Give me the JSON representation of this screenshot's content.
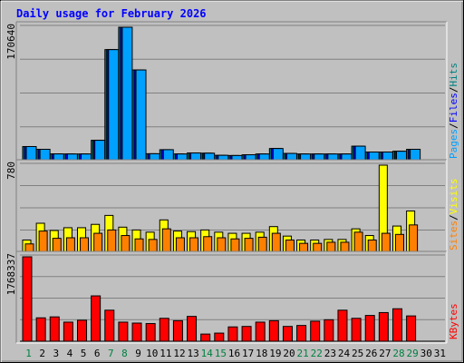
{
  "title": "Daily usage for February 2026",
  "chart_data": [
    {
      "type": "bar",
      "panel": "hits",
      "ymax_label": "170640",
      "ylim": [
        0,
        170640
      ],
      "legend": [
        {
          "text": "Pages",
          "color": "#00a0ff"
        },
        {
          "text": "/",
          "color": "#000000"
        },
        {
          "text": "Files",
          "color": "#0000ff"
        },
        {
          "text": "/",
          "color": "#000000"
        },
        {
          "text": "Hits",
          "color": "#008080"
        }
      ],
      "series": [
        {
          "name": "Hits",
          "color": "#008080",
          "values": [
            18000,
            14500,
            8600,
            8500,
            8500,
            26000,
            142000,
            170640,
            116000,
            8800,
            14000,
            8500,
            9800,
            9500,
            6800,
            6500,
            7500,
            8500,
            15500,
            9200,
            8500,
            8500,
            8500,
            8500,
            18500,
            11000,
            11000,
            12000,
            14500,
            0,
            0
          ]
        },
        {
          "name": "Files",
          "color": "#0000ff",
          "values": [
            18000,
            14500,
            8600,
            8500,
            8500,
            26000,
            142000,
            170640,
            116000,
            8800,
            14000,
            8500,
            9800,
            9500,
            6800,
            6500,
            7500,
            8500,
            15500,
            9200,
            8500,
            8500,
            8500,
            8500,
            18500,
            11000,
            11000,
            12000,
            14500,
            0,
            0
          ]
        },
        {
          "name": "Pages",
          "color": "#00a0ff",
          "values": [
            18000,
            14500,
            8600,
            8500,
            8500,
            26000,
            142000,
            170640,
            116000,
            8800,
            14000,
            8500,
            9800,
            9500,
            6800,
            6500,
            7500,
            8500,
            15500,
            9200,
            8500,
            8500,
            8500,
            8500,
            18500,
            11000,
            11000,
            12000,
            14500,
            0,
            0
          ]
        }
      ]
    },
    {
      "type": "bar",
      "panel": "visits",
      "ymax_label": "780",
      "ylim": [
        0,
        780
      ],
      "legend": [
        {
          "text": "Sites",
          "color": "#ff8000"
        },
        {
          "text": "/",
          "color": "#000000"
        },
        {
          "text": "Visits",
          "color": "#ffff00"
        }
      ],
      "series": [
        {
          "name": "Visits",
          "color": "#ffff00",
          "values": [
            110,
            260,
            195,
            220,
            220,
            250,
            330,
            225,
            200,
            180,
            290,
            190,
            185,
            200,
            180,
            170,
            170,
            180,
            230,
            145,
            110,
            110,
            115,
            115,
            210,
            150,
            780,
            235,
            370,
            0,
            0
          ]
        },
        {
          "name": "Sites",
          "color": "#ff8000",
          "values": [
            75,
            190,
            125,
            130,
            130,
            170,
            200,
            150,
            120,
            115,
            210,
            130,
            130,
            140,
            130,
            120,
            125,
            135,
            170,
            110,
            80,
            80,
            90,
            90,
            180,
            110,
            170,
            160,
            245,
            0,
            0
          ]
        }
      ]
    },
    {
      "type": "bar",
      "panel": "kbytes",
      "ymax_label": "1768337",
      "ylim": [
        0,
        1768337
      ],
      "legend": [
        {
          "text": "KBytes",
          "color": "#ff0000"
        }
      ],
      "series": [
        {
          "name": "KBytes",
          "color": "#ff0000",
          "values": [
            1768337,
            490000,
            510000,
            400000,
            440000,
            950000,
            650000,
            400000,
            380000,
            370000,
            480000,
            430000,
            520000,
            150000,
            170000,
            300000,
            310000,
            400000,
            430000,
            310000,
            330000,
            420000,
            450000,
            650000,
            480000,
            540000,
            600000,
            680000,
            530000,
            0,
            0
          ]
        }
      ]
    }
  ],
  "days": [
    "1",
    "2",
    "3",
    "4",
    "5",
    "6",
    "7",
    "8",
    "9",
    "10",
    "11",
    "12",
    "13",
    "14",
    "15",
    "16",
    "17",
    "18",
    "19",
    "20",
    "21",
    "22",
    "23",
    "24",
    "25",
    "26",
    "27",
    "28",
    "29",
    "30",
    "31"
  ],
  "weekend_days": [
    1,
    7,
    8,
    14,
    15,
    21,
    22,
    28,
    29
  ],
  "weekday_color": "#000000",
  "weekend_color": "#008040"
}
